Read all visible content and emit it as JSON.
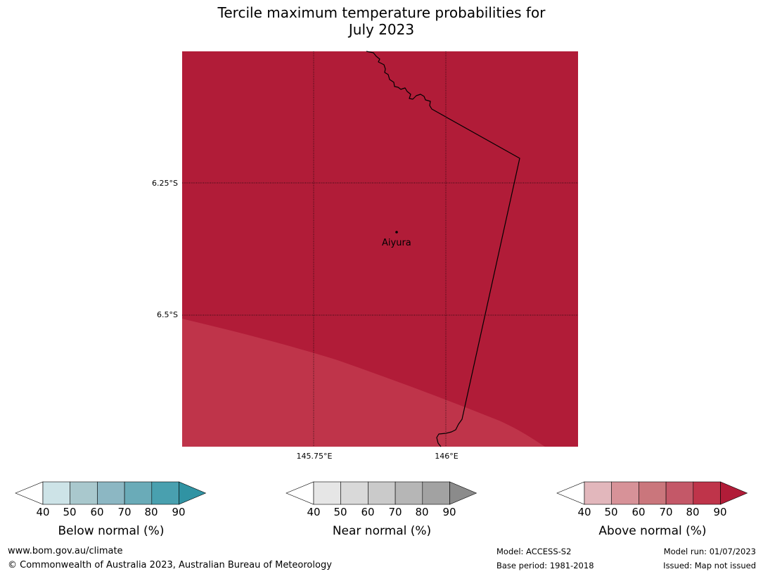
{
  "title": {
    "line1": "Tercile maximum temperature probabilities for",
    "line2": "July 2023"
  },
  "map": {
    "fill_color_main": "#b11c38",
    "fill_color_lower": "#bf344a",
    "border_color": "#000000",
    "lat_labels": [
      "6.25°S",
      "6.5°S"
    ],
    "lon_labels": [
      "145.75°E",
      "146°E"
    ],
    "place": {
      "name": "Aiyura"
    }
  },
  "colorbars": [
    {
      "label": "Below normal (%)",
      "ticks": [
        "40",
        "50",
        "60",
        "70",
        "80",
        "90"
      ],
      "colors": [
        "#cde3e7",
        "#a9c8cd",
        "#8cb7c3",
        "#6aabb8",
        "#49a0af"
      ],
      "over_color": "#3093a3"
    },
    {
      "label": "Near normal (%)",
      "ticks": [
        "40",
        "50",
        "60",
        "70",
        "80",
        "90"
      ],
      "colors": [
        "#e6e6e6",
        "#d9d9d9",
        "#cacaca",
        "#b6b6b6",
        "#a2a2a2"
      ],
      "over_color": "#8b8b8b"
    },
    {
      "label": "Above normal (%)",
      "ticks": [
        "40",
        "50",
        "60",
        "70",
        "80",
        "90"
      ],
      "colors": [
        "#e2b7bc",
        "#d79298",
        "#ca767c",
        "#c45868",
        "#bf344a"
      ],
      "over_color": "#b11c38"
    }
  ],
  "footer": {
    "website": "www.bom.gov.au/climate",
    "copyright": "© Commonwealth of Australia 2023, Australian Bureau of Meteorology",
    "model": "Model: ACCESS-S2",
    "base_period": "Base period: 1981-2018",
    "model_run": "Model run: 01/07/2023",
    "issued": "Issued: Map not issued"
  }
}
